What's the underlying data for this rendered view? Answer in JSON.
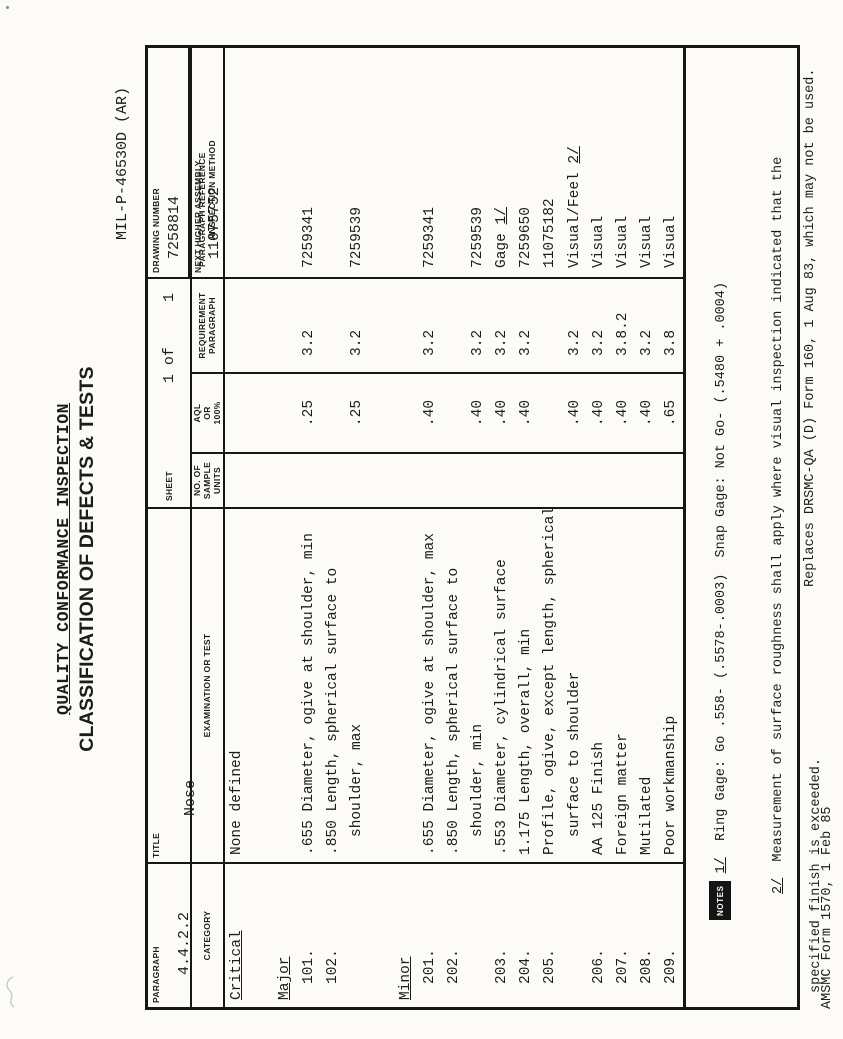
{
  "document": {
    "spec_number": "MIL-P-46530D (AR)",
    "form_title_line1": "QUALITY CONFORMANCE INSPECTION",
    "form_title_line2": "CLASSIFICATION OF DEFECTS & TESTS",
    "header": {
      "paragraph_label": "PARAGRAPH",
      "paragraph_value": "4.4.2.2",
      "title_label": "TITLE",
      "title_value": "Nose",
      "sheet_label": "SHEET",
      "sheet_value": "1 of",
      "sheet_total": "1",
      "drawing_number_label": "DRAWING NUMBER",
      "drawing_number_value": "7258814",
      "next_higher_assembly_label": "NEXT HIGHER ASSEMBLY",
      "next_higher_assembly_value": "11075752"
    },
    "column_headers": {
      "category": "CATEGORY",
      "examination": "EXAMINATION OR TEST",
      "sample_units": [
        "NO. OF",
        "SAMPLE",
        "UNITS"
      ],
      "aql": [
        "AQL",
        "OR",
        "100%"
      ],
      "requirement": [
        "REQUIREMENT",
        "PARAGRAPH"
      ],
      "reference_line1": "PARAGRAPH REFERENCE",
      "reference_line2": "/INSPECTION METHOD"
    },
    "body_rows": [
      {
        "cat": "Critical",
        "cat_underline": true,
        "exam": "None defined"
      },
      {
        "blank": true
      },
      {
        "cat": "Major",
        "cat_underline": true
      },
      {
        "cat": "101.",
        "num": true,
        "exam": ".655 Diameter, ogive at shoulder, min",
        "aql": ".25",
        "req": "3.2",
        "ref": "7259341"
      },
      {
        "cat": "102.",
        "num": true,
        "exam": ".850 Length, spherical surface to"
      },
      {
        "exam": "shoulder, max",
        "exam_indent": true,
        "aql": ".25",
        "req": "3.2",
        "ref": "7259539"
      },
      {
        "blank": true
      },
      {
        "cat": "Minor",
        "cat_underline": true
      },
      {
        "cat": "201.",
        "num": true,
        "exam": ".655 Diameter, ogive at shoulder, max",
        "aql": ".40",
        "req": "3.2",
        "ref": "7259341"
      },
      {
        "cat": "202.",
        "num": true,
        "exam": ".850 Length, spherical surface to"
      },
      {
        "exam": "shoulder, min",
        "exam_indent": true,
        "aql": ".40",
        "req": "3.2",
        "ref": "7259539"
      },
      {
        "cat": "203.",
        "num": true,
        "exam": ".553 Diameter, cylindrical surface",
        "aql": ".40",
        "req": "3.2",
        "ref": "Gage ",
        "ref_mark": "1/"
      },
      {
        "cat": "204.",
        "num": true,
        "exam": "1.175 Length, overall, min",
        "aql": ".40",
        "req": "3.2",
        "ref": "7259650"
      },
      {
        "cat": "205.",
        "num": true,
        "exam": "Profile, ogive, except length, spherical",
        "ref": "11075182"
      },
      {
        "exam": "surface to shoulder",
        "exam_indent": true,
        "aql": ".40",
        "req": "3.2",
        "ref": "Visual/Feel ",
        "ref_mark": "2/"
      },
      {
        "cat": "206.",
        "num": true,
        "exam": "AA 125 Finish",
        "aql": ".40",
        "req": "3.2",
        "ref": "Visual"
      },
      {
        "cat": "207.",
        "num": true,
        "exam": "Foreign matter",
        "aql": ".40",
        "req": "3.8.2",
        "ref": "Visual"
      },
      {
        "cat": "208.",
        "num": true,
        "exam": "Mutilated",
        "aql": ".40",
        "req": "3.2",
        "ref": "Visual"
      },
      {
        "cat": "209.",
        "num": true,
        "exam": "Poor workmanship",
        "aql": ".65",
        "req": "3.8",
        "ref": "Visual"
      }
    ],
    "notes": {
      "label": "NOTES",
      "line1_mark": "1/",
      "line1_text": "  Ring Gage: Go .558- (.5578-.0003)  Snap Gage: Not Go- (.5480 + .0004)",
      "line2_mark": "2/",
      "line2_text": "  Measurement of surface roughness shall apply where visual inspection indicated that the",
      "line3_text": "specified finish is exceeded."
    },
    "footer": {
      "form_id": "AMSMC Form 1570, 1 Feb 85",
      "replaces": "Replaces DRSMC-QA (D) Form 160, 1 Aug 83, which may not be used."
    },
    "ink_color": "#1c1c1c",
    "paper_color": "#fcfbf8"
  }
}
